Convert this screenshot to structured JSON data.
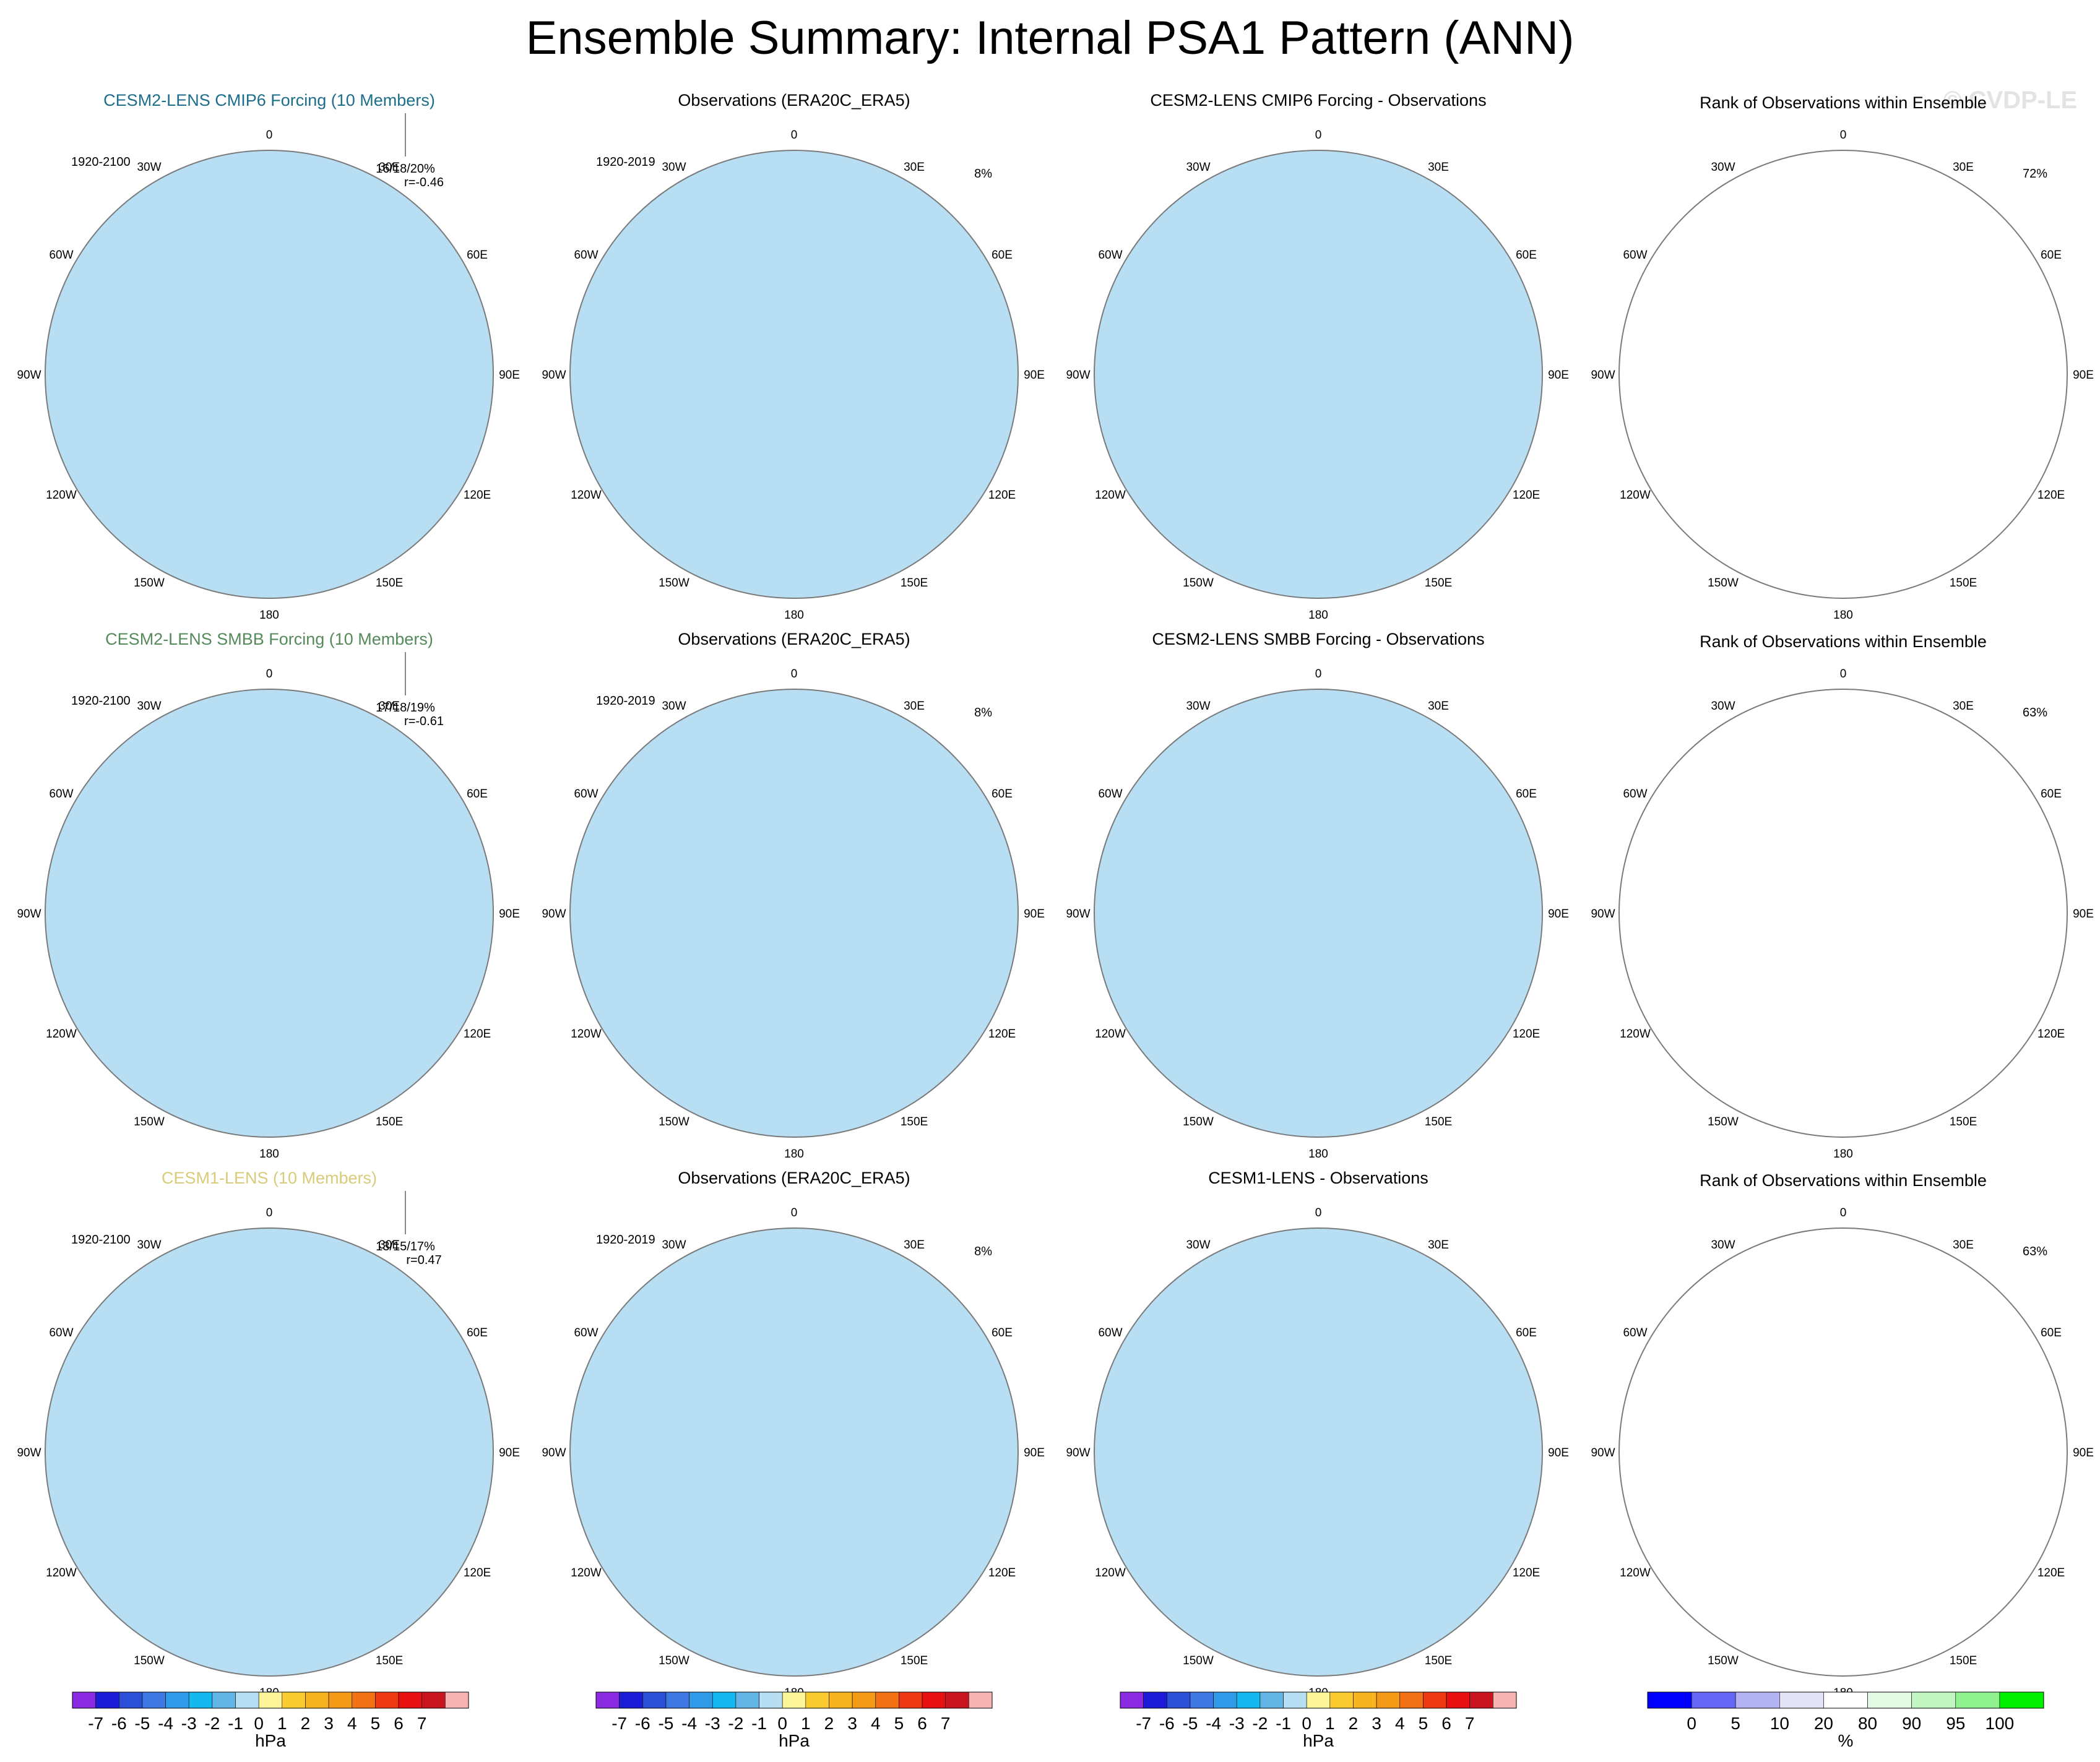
{
  "title": "Ensemble Summary: Internal PSA1 Pattern (ANN)",
  "watermark": "© CVDP-LE",
  "colors": {
    "dblue": "#63b5e6",
    "lblue": "#b7def2",
    "lyellow": "#fcf59a",
    "gold": "#fbcc2f",
    "orange": "#f39b16",
    "rank_blue": "#0000ff",
    "rank_lav": "#e3e3f8",
    "rank_lgreen": "#e4fae4",
    "rank_mgreen": "#c3f5c3",
    "rank_green": "#00f000",
    "title_cmip6": "#1c6e8c",
    "title_smbb": "#558a5a",
    "title_cesm1": "#d8cb7a"
  },
  "labels": {
    "lon": [
      "0",
      "30E",
      "60E",
      "90E",
      "120E",
      "150E",
      "180",
      "150W",
      "120W",
      "90W",
      "60W",
      "30W"
    ],
    "units_hpa": "hPa",
    "units_pct": "%"
  },
  "rows": [
    {
      "model": {
        "title": "CESM2-LENS CMIP6 Forcing (10 Members)",
        "period": "1920-2100",
        "stat": "16/18/20%",
        "r": "r=-0.46",
        "title_color": "#1c6e8c"
      },
      "obs": {
        "title": "Observations (ERA20C_ERA5)",
        "period": "1920-2019",
        "pct": "8%"
      },
      "diff": {
        "title": "CESM2-LENS CMIP6 Forcing - Observations"
      },
      "rank": {
        "title": "Rank of Observations within Ensemble",
        "pct": "72%"
      }
    },
    {
      "model": {
        "title": "CESM2-LENS SMBB Forcing (10 Members)",
        "period": "1920-2100",
        "stat": "17/18/19%",
        "r": "r=-0.61",
        "title_color": "#558a5a"
      },
      "obs": {
        "title": "Observations (ERA20C_ERA5)",
        "period": "1920-2019",
        "pct": "8%"
      },
      "diff": {
        "title": "CESM2-LENS SMBB Forcing - Observations"
      },
      "rank": {
        "title": "Rank of Observations within Ensemble",
        "pct": "63%"
      }
    },
    {
      "model": {
        "title": "CESM1-LENS (10 Members)",
        "period": "1920-2100",
        "stat": "13/15/17%",
        "r": "r=0.47",
        "title_color": "#d8cb7a"
      },
      "obs": {
        "title": "Observations (ERA20C_ERA5)",
        "period": "1920-2019",
        "pct": "8%"
      },
      "diff": {
        "title": "CESM1-LENS - Observations"
      },
      "rank": {
        "title": "Rank of Observations within Ensemble",
        "pct": "63%"
      }
    }
  ],
  "colorbars": {
    "hpa": {
      "labels": [
        "-7",
        "-6",
        "-5",
        "-4",
        "-3",
        "-2",
        "-1",
        "0",
        "1",
        "2",
        "3",
        "4",
        "5",
        "6",
        "7"
      ],
      "colors": [
        "#8a2be2",
        "#1c1cd8",
        "#2c4fd8",
        "#3d78e3",
        "#2f9ae8",
        "#16b8f0",
        "#63b5e6",
        "#b7def2",
        "#fcf59a",
        "#fbcc2f",
        "#f8b41e",
        "#f39b16",
        "#f47216",
        "#ee3a12",
        "#e81010",
        "#c8141c",
        "#f8b4b4"
      ],
      "units": "hPa"
    },
    "rank": {
      "labels": [
        "0",
        "5",
        "10",
        "20",
        "80",
        "90",
        "95",
        "100"
      ],
      "colors": [
        "#0000ff",
        "#6666f5",
        "#b4b4f5",
        "#e3e3f8",
        "#ffffff",
        "#e4fae4",
        "#c3f5c3",
        "#8ff28f",
        "#00f000"
      ],
      "units": "%"
    }
  },
  "chart_data": {
    "type": "heatmap",
    "title": "Ensemble Summary: Internal PSA1 Pattern (ANN)",
    "projection": "south polar stereographic",
    "grid": "3 rows x 4 columns of polar maps",
    "columns": [
      "Model ensemble pattern",
      "Observations (ERA20C_ERA5)",
      "Model - Observations",
      "Rank of Observations within Ensemble"
    ],
    "value_units": [
      "hPa",
      "hPa",
      "hPa",
      "%"
    ],
    "contour_levels_hpa": [
      -7,
      -6,
      -5,
      -4,
      -3,
      -2,
      -1,
      0,
      1,
      2,
      3,
      4,
      5,
      6,
      7
    ],
    "rank_levels_pct": [
      0,
      5,
      10,
      20,
      80,
      90,
      95,
      100
    ],
    "maps": [
      {
        "row": 1,
        "model": "CESM2-LENS CMIP6 Forcing (10 Members)",
        "period": "1920-2100",
        "variance_stats": "16/18/20%",
        "pattern_correlation": -0.46,
        "obs_variance": "8%",
        "rank_pct_agreement": "72%"
      },
      {
        "row": 2,
        "model": "CESM2-LENS SMBB Forcing (10 Members)",
        "period": "1920-2100",
        "variance_stats": "17/18/19%",
        "pattern_correlation": -0.61,
        "obs_variance": "8%",
        "rank_pct_agreement": "63%"
      },
      {
        "row": 3,
        "model": "CESM1-LENS (10 Members)",
        "period": "1920-2100",
        "variance_stats": "13/15/17%",
        "pattern_correlation": 0.47,
        "obs_variance": "8%",
        "rank_pct_agreement": "63%"
      }
    ]
  }
}
